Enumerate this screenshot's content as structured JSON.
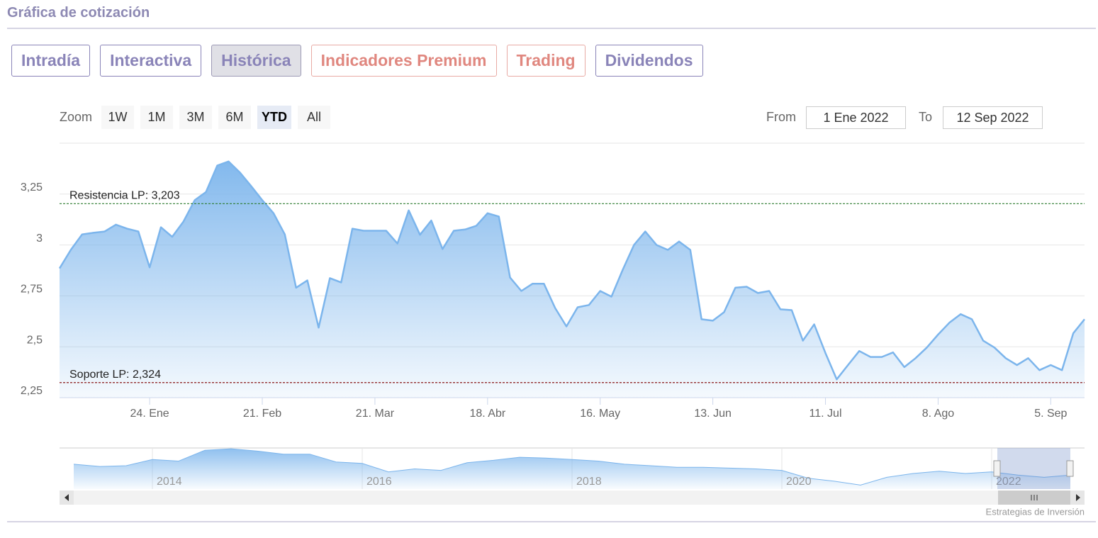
{
  "header": {
    "title": "Gráfica de cotización"
  },
  "tabs": [
    {
      "label": "Intradía",
      "color": "#8a84b8",
      "active": false
    },
    {
      "label": "Interactiva",
      "color": "#8a84b8",
      "active": false
    },
    {
      "label": "Histórica",
      "color": "#8a84b8",
      "active": true
    },
    {
      "label": "Indicadores Premium",
      "color": "#e0877f",
      "active": false
    },
    {
      "label": "Trading",
      "color": "#e0877f",
      "active": false
    },
    {
      "label": "Dividendos",
      "color": "#8a84b8",
      "active": false
    }
  ],
  "zoom": {
    "label": "Zoom",
    "buttons": [
      {
        "label": "1W",
        "active": false
      },
      {
        "label": "1M",
        "active": false
      },
      {
        "label": "3M",
        "active": false
      },
      {
        "label": "6M",
        "active": false
      },
      {
        "label": "YTD",
        "active": true
      },
      {
        "label": "All",
        "active": false
      }
    ]
  },
  "range": {
    "from_label": "From",
    "from": "1 Ene 2022",
    "to_label": "To",
    "to": "12 Sep 2022"
  },
  "chart_data": {
    "type": "area",
    "color": "#7cb5ec",
    "grid": true,
    "ylim": [
      2.25,
      3.5
    ],
    "yticks": [
      {
        "value": 2.25,
        "label": "2,25"
      },
      {
        "value": 2.5,
        "label": "2,5"
      },
      {
        "value": 2.75,
        "label": "2,75"
      },
      3,
      {
        "value": 3.25,
        "label": "3,25"
      }
    ],
    "categories": [
      null,
      null,
      null,
      null,
      null,
      null,
      null,
      null,
      "24. Ene",
      null,
      null,
      null,
      null,
      null,
      null,
      null,
      null,
      null,
      "21. Feb",
      null,
      null,
      null,
      null,
      null,
      null,
      null,
      null,
      null,
      "21. Mar",
      null,
      null,
      null,
      null,
      null,
      null,
      null,
      null,
      null,
      "18. Abr",
      null,
      null,
      null,
      null,
      null,
      null,
      null,
      null,
      null,
      "16. May",
      null,
      null,
      null,
      null,
      null,
      null,
      null,
      null,
      null,
      "13. Jun",
      null,
      null,
      null,
      null,
      null,
      null,
      null,
      null,
      null,
      "11. Jul",
      null,
      null,
      null,
      null,
      null,
      null,
      null,
      null,
      null,
      "8. Ago",
      null,
      null,
      null,
      null,
      null,
      null,
      null,
      null,
      null,
      "5. Sep",
      null,
      null,
      null
    ],
    "values": [
      2.885,
      2.976,
      3.052,
      3.06,
      3.066,
      3.1,
      3.08,
      3.066,
      2.89,
      3.087,
      3.04,
      3.115,
      3.22,
      3.26,
      3.39,
      3.41,
      3.357,
      3.29,
      3.22,
      3.156,
      3.052,
      2.79,
      2.826,
      2.594,
      2.837,
      2.816,
      3.08,
      3.07,
      3.07,
      3.07,
      3.007,
      3.17,
      3.05,
      3.12,
      2.98,
      3.07,
      3.076,
      3.094,
      3.156,
      3.14,
      2.84,
      2.774,
      2.81,
      2.81,
      2.69,
      2.6,
      2.694,
      2.705,
      2.774,
      2.746,
      2.878,
      3.0,
      3.066,
      3.0,
      2.976,
      3.017,
      2.976,
      2.635,
      2.628,
      2.67,
      2.79,
      2.795,
      2.764,
      2.774,
      2.684,
      2.68,
      2.53,
      2.61,
      2.469,
      2.34,
      2.41,
      2.479,
      2.45,
      2.45,
      2.472,
      2.4,
      2.444,
      2.496,
      2.56,
      2.618,
      2.66,
      2.635,
      2.53,
      2.496,
      2.444,
      2.41,
      2.444,
      2.385,
      2.41,
      2.385,
      2.566,
      2.635
    ],
    "plot_lines": [
      {
        "label": "Resistencia LP: 3,203",
        "value": 3.203,
        "color": "#2f7d32"
      },
      {
        "label": "Soporte LP: 2,324",
        "value": 2.324,
        "color": "#8b1a1a"
      }
    ]
  },
  "navigator": {
    "ylim": [
      1.6,
      5.4
    ],
    "categories": [
      null,
      null,
      null,
      "2014",
      null,
      null,
      null,
      null,
      null,
      null,
      null,
      "2016",
      null,
      null,
      null,
      null,
      null,
      null,
      null,
      "2018",
      null,
      null,
      null,
      null,
      null,
      null,
      null,
      "2020",
      null,
      null,
      null,
      null,
      null,
      null,
      null,
      "2022",
      null,
      null,
      null
    ],
    "values": [
      3.9,
      3.69,
      3.76,
      4.33,
      4.19,
      5.19,
      5.33,
      5.11,
      4.83,
      4.83,
      4.11,
      3.97,
      3.19,
      3.47,
      3.33,
      4.04,
      4.26,
      4.54,
      4.47,
      4.33,
      4.19,
      3.9,
      3.76,
      3.61,
      3.61,
      3.54,
      3.47,
      3.33,
      2.61,
      2.33,
      1.97,
      2.69,
      3.04,
      3.26,
      3.04,
      3.19,
      2.9,
      2.69,
      2.9
    ]
  },
  "credits": "Estrategias de Inversión"
}
